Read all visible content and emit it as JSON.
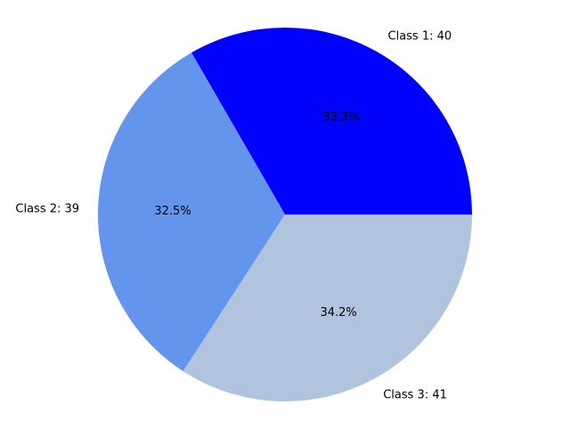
{
  "chart_data": {
    "type": "pie",
    "categories": [
      "Class 1",
      "Class 2",
      "Class 3"
    ],
    "values": [
      40,
      39,
      41
    ],
    "labels": [
      "Class 1: 40",
      "Class 2: 39",
      "Class 3: 41"
    ],
    "percent_labels": [
      "33.3%",
      "32.5%",
      "34.2%"
    ],
    "colors": [
      "#0000ff",
      "#6495ed",
      "#b0c4de"
    ],
    "start_angle_deg": 0,
    "direction": "counterclockwise",
    "legend": "none"
  }
}
